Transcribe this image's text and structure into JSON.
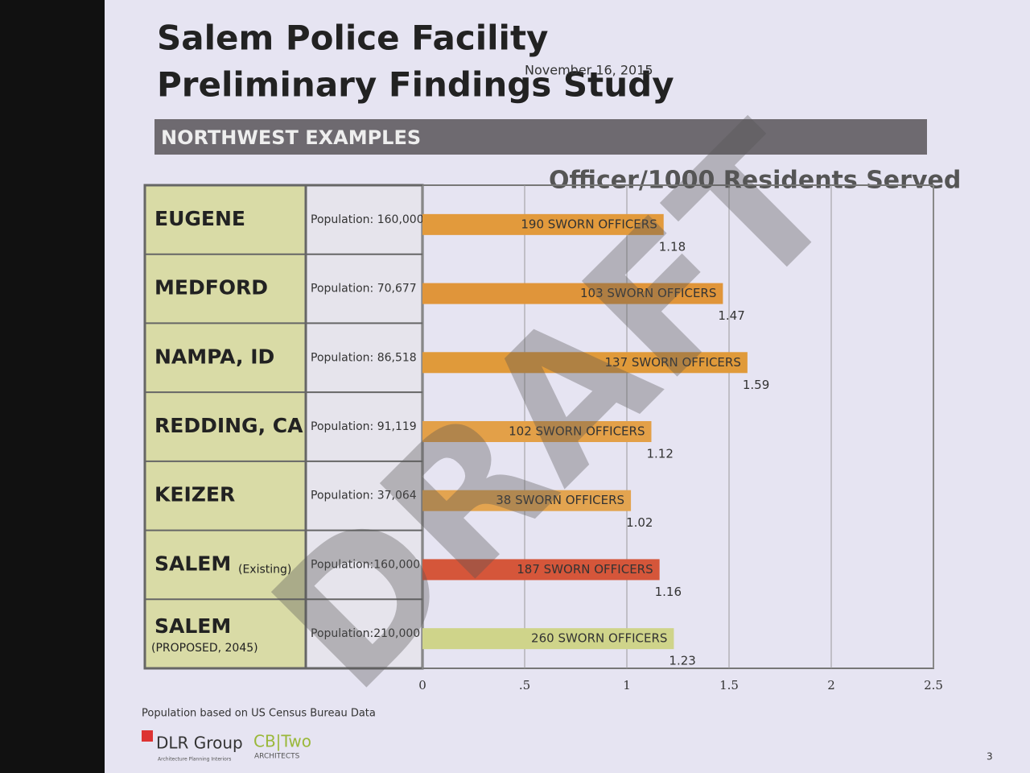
{
  "slide": {
    "title_lines": [
      "Salem Police Facility",
      "Preliminary Findings Study"
    ],
    "date": "November 16, 2015",
    "section": "NORTHWEST EXAMPLES",
    "footnote": "Population based on US Census Bureau Data",
    "logo_1": "DLR Group",
    "logo_1_tagline": "Architecture  Planning  Interiors",
    "logo_2": "CB|Two",
    "logo_2_sub": "ARCHITECTS",
    "page_number": "3",
    "watermark": "DRAFT"
  },
  "chart_data": {
    "type": "bar",
    "orientation": "horizontal",
    "title": "Officer/1000 Residents Served",
    "categories": [
      "EUGENE",
      "MEDFORD",
      "NAMPA, ID",
      "REDDING, CA",
      "KEIZER",
      "SALEM",
      "SALEM"
    ],
    "category_notes": [
      null,
      null,
      null,
      null,
      null,
      "(Existing)",
      "(PROPOSED, 2045)"
    ],
    "populations": [
      "Population: 160,000",
      "Population: 70,677",
      "Population: 86,518",
      "Population: 91,119",
      "Population: 37,064",
      "Population:160,000",
      "Population:210,000"
    ],
    "bar_labels": [
      "190 SWORN OFFICERS",
      "103 SWORN OFFICERS",
      "137 SWORN OFFICERS",
      "102 SWORN OFFICERS",
      "38 SWORN OFFICERS",
      "187 SWORN OFFICERS",
      "260 SWORN OFFICERS"
    ],
    "values": [
      1.18,
      1.47,
      1.59,
      1.12,
      1.02,
      1.16,
      1.23
    ],
    "colors": [
      "#e29a3c",
      "#e0953a",
      "#e09a3a",
      "#e3a048",
      "#e3a450",
      "#d5563a",
      "#cfd48a"
    ],
    "xlim": [
      0,
      2.5
    ],
    "xticks": [
      0,
      {
        "value": 0.5,
        "label": ".5"
      },
      1,
      1.5,
      2,
      2.5
    ],
    "grid": true
  }
}
